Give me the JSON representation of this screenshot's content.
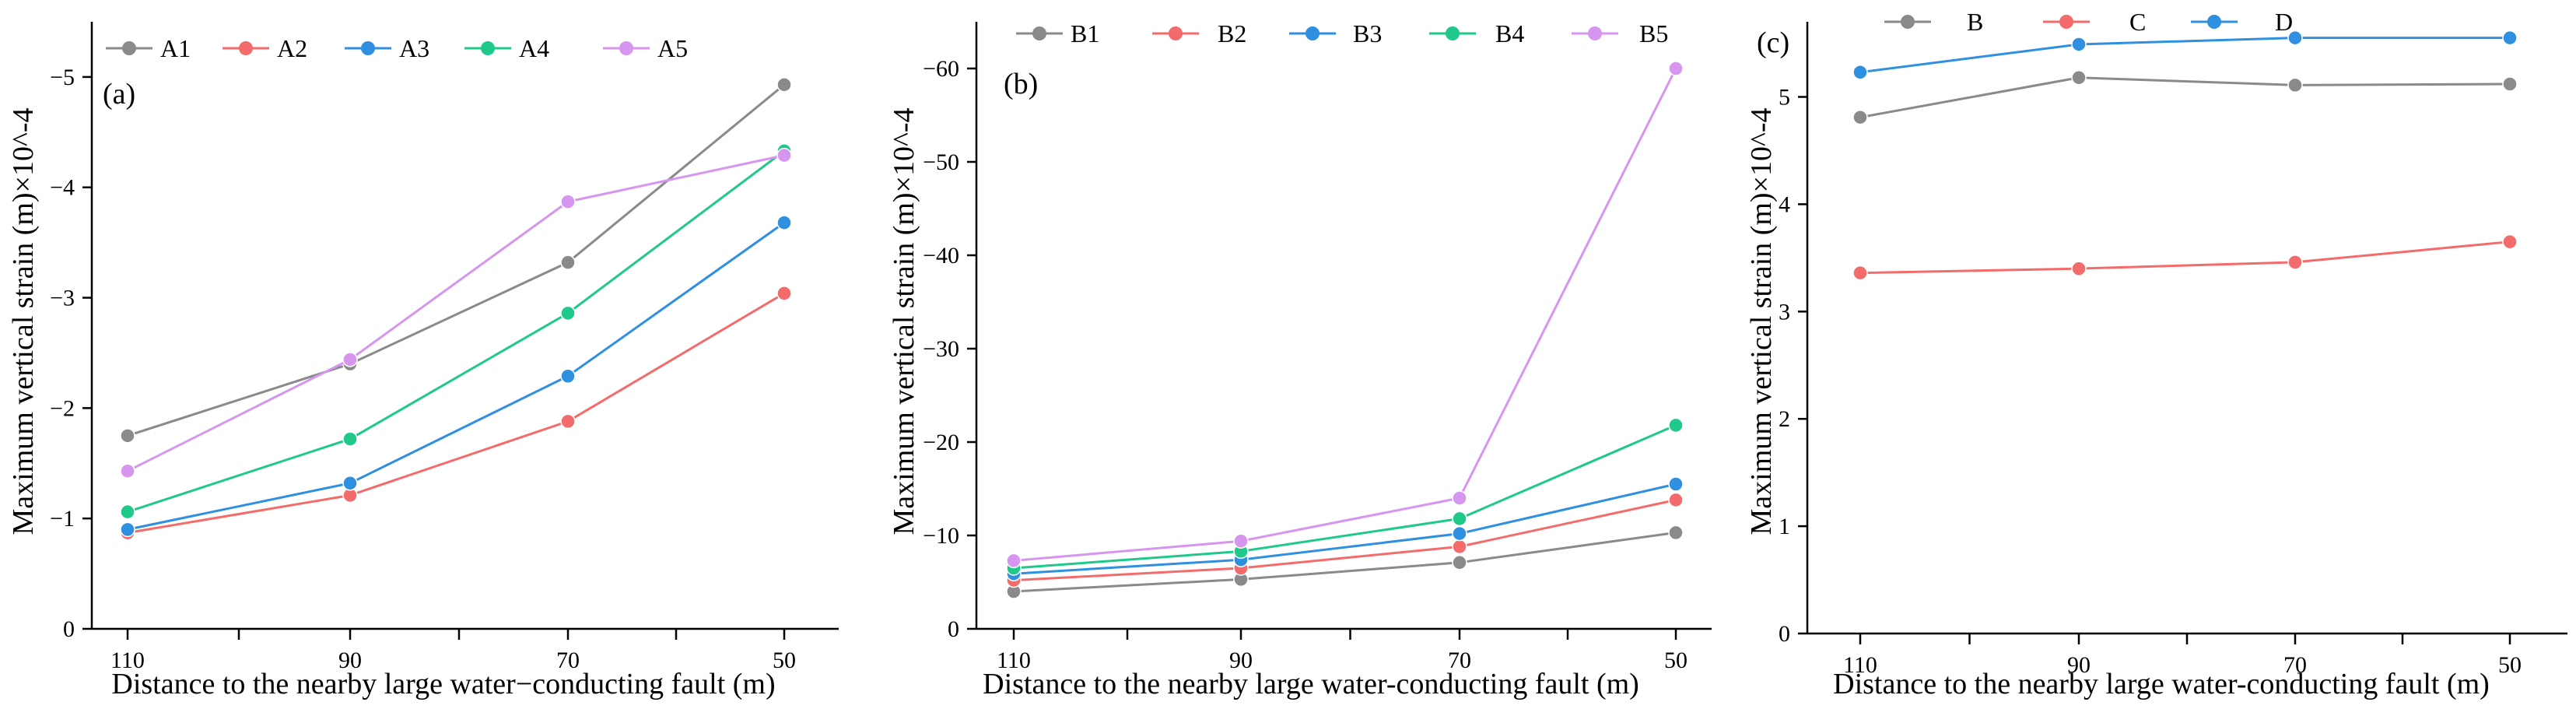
{
  "chart_data": [
    {
      "type": "line",
      "panel_label": "(a)",
      "xlabel": "Distance to the nearby large water−conducting fault (m)",
      "ylabel": "Maximum vertical strain (m)×10^-4",
      "x": [
        110,
        90,
        70,
        50
      ],
      "x_ticks": [
        "110",
        "90",
        "70",
        "50"
      ],
      "y_ticks": [
        0,
        -1,
        -2,
        -3,
        -4,
        -5
      ],
      "y_tick_labels": [
        "0",
        "−1",
        "−2",
        "−3",
        "−4",
        "−5"
      ],
      "ylim": [
        0,
        -5.5
      ],
      "legend_position": "top",
      "series": [
        {
          "name": "A1",
          "color": "#8a8a8a",
          "values": [
            -1.75,
            -2.4,
            -3.32,
            -4.93
          ]
        },
        {
          "name": "A2",
          "color": "#f36b6b",
          "values": [
            -0.87,
            -1.21,
            -1.88,
            -3.04
          ]
        },
        {
          "name": "A3",
          "color": "#2f8fe0",
          "values": [
            -0.9,
            -1.32,
            -2.29,
            -3.68
          ]
        },
        {
          "name": "A4",
          "color": "#1fc98a",
          "values": [
            -1.06,
            -1.72,
            -2.86,
            -4.33
          ]
        },
        {
          "name": "A5",
          "color": "#d695ee",
          "values": [
            -1.43,
            -2.44,
            -3.87,
            -4.29
          ]
        }
      ]
    },
    {
      "type": "line",
      "panel_label": "(b)",
      "xlabel": "Distance to the nearby large water-conducting fault (m)",
      "ylabel": "Maximum vertical strain (m)×10^-4",
      "x": [
        110,
        90,
        70,
        50
      ],
      "x_ticks": [
        "110",
        "90",
        "70",
        "50"
      ],
      "y_ticks": [
        0,
        -10,
        -20,
        -30,
        -40,
        -50,
        -60
      ],
      "y_tick_labels": [
        "0",
        "−10",
        "−20",
        "−30",
        "−40",
        "−50",
        "−60"
      ],
      "ylim": [
        0,
        -65
      ],
      "legend_position": "top",
      "series": [
        {
          "name": "B1",
          "color": "#8a8a8a",
          "values": [
            -4.0,
            -5.3,
            -7.1,
            -10.3
          ]
        },
        {
          "name": "B2",
          "color": "#f36b6b",
          "values": [
            -5.2,
            -6.5,
            -8.8,
            -13.8
          ]
        },
        {
          "name": "B3",
          "color": "#2f8fe0",
          "values": [
            -5.9,
            -7.4,
            -10.2,
            -15.5
          ]
        },
        {
          "name": "B4",
          "color": "#1fc98a",
          "values": [
            -6.5,
            -8.3,
            -11.8,
            -21.8
          ]
        },
        {
          "name": "B5",
          "color": "#d695ee",
          "values": [
            -7.3,
            -9.4,
            -14.0,
            -60.0
          ]
        }
      ]
    },
    {
      "type": "line",
      "panel_label": "(c)",
      "xlabel": "Distance to the nearby large water-conducting fault (m)",
      "ylabel": "Maximum vertical strain (m)×10^-4",
      "x": [
        110,
        90,
        70,
        50
      ],
      "x_ticks": [
        "110",
        "90",
        "70",
        "50"
      ],
      "y_ticks": [
        0,
        1,
        2,
        3,
        4,
        5
      ],
      "y_tick_labels": [
        "0",
        "1",
        "2",
        "3",
        "4",
        "5"
      ],
      "ylim": [
        0,
        5.7
      ],
      "legend_position": "top",
      "series": [
        {
          "name": "B",
          "color": "#8a8a8a",
          "values": [
            4.81,
            5.18,
            5.11,
            5.12
          ]
        },
        {
          "name": "C",
          "color": "#f36b6b",
          "values": [
            3.36,
            3.4,
            3.46,
            3.65
          ]
        },
        {
          "name": "D",
          "color": "#2f8fe0",
          "values": [
            5.23,
            5.49,
            5.55,
            5.55
          ]
        }
      ]
    }
  ]
}
